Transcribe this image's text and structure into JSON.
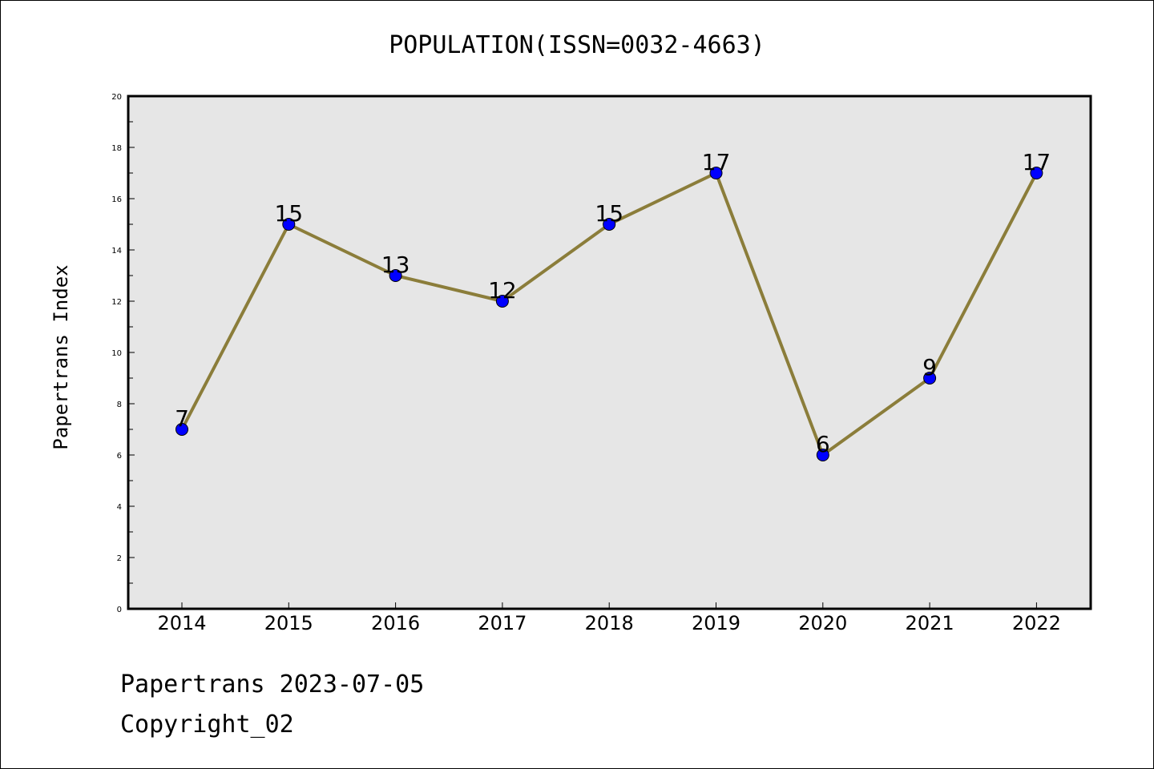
{
  "chart_data": {
    "type": "line",
    "title": "POPULATION(ISSN=0032-4663)",
    "xlabel": "",
    "ylabel": "Papertrans Index",
    "categories": [
      "2014",
      "2015",
      "2016",
      "2017",
      "2018",
      "2019",
      "2020",
      "2021",
      "2022"
    ],
    "series": [
      {
        "values": [
          7,
          15,
          13,
          12,
          15,
          17,
          6,
          9,
          17
        ]
      }
    ],
    "ylim": [
      0,
      20
    ],
    "y_ticks": [
      "0",
      "2",
      "4",
      "6",
      "8",
      "10",
      "12",
      "14",
      "16",
      "18",
      "20"
    ],
    "grid": false,
    "line_color": "#8b7d3a",
    "marker_color": "#0000ff",
    "plot_background": "#e6e6e6"
  },
  "footer": {
    "line1": "Papertrans 2023-07-05",
    "line2": "Copyright_02"
  }
}
